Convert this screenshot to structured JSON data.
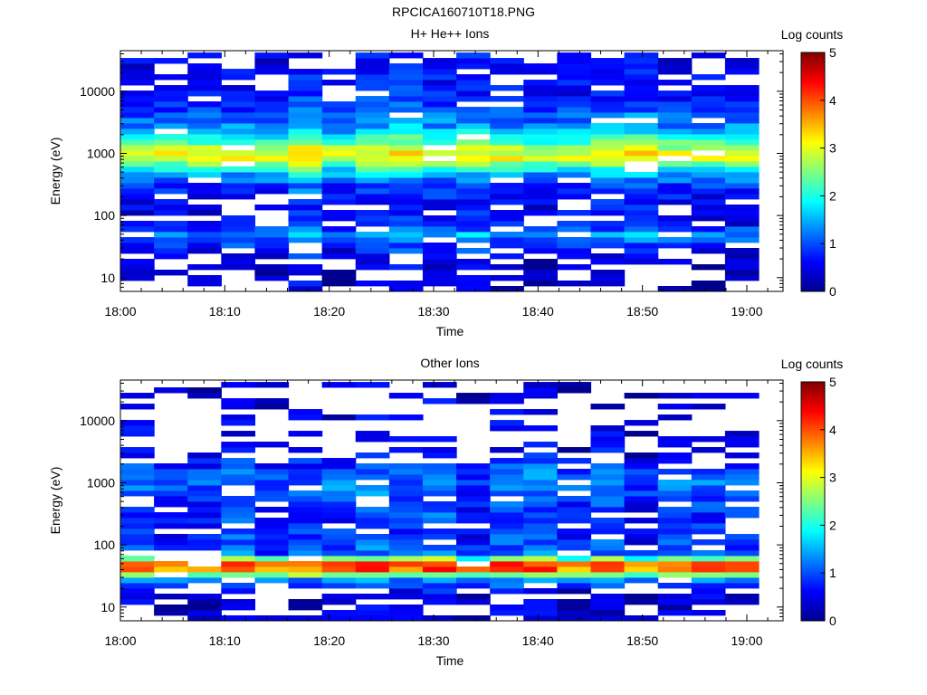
{
  "page_title": "RPCICA160710T18.PNG",
  "chart_data": [
    {
      "type": "heatmap",
      "title": "H+ He++ Ions",
      "xlabel": "Time",
      "ylabel": "Energy (eV)",
      "x_ticks": [
        "18:00",
        "18:10",
        "18:20",
        "18:30",
        "18:40",
        "18:50",
        "19:00"
      ],
      "x_range": [
        "18:00",
        "19:03"
      ],
      "y_scale": "log",
      "y_ticks": [
        10,
        100,
        1000,
        10000
      ],
      "y_tick_labels": [
        "10",
        "100",
        "1000",
        "10000"
      ],
      "y_range": [
        6,
        45000
      ],
      "colorbar": {
        "label": "Log counts",
        "range": [
          0,
          5
        ],
        "ticks": [
          "0",
          "1",
          "2",
          "3",
          "4",
          "5"
        ]
      },
      "time_bins": 19,
      "profile": [
        {
          "energy": 8,
          "value": 0.3
        },
        {
          "energy": 14,
          "value": 0.35
        },
        {
          "energy": 22,
          "value": 0.5
        },
        {
          "energy": 30,
          "value": 0.85
        },
        {
          "energy": 40,
          "value": 1.1
        },
        {
          "energy": 48,
          "value": 1.55
        },
        {
          "energy": 60,
          "value": 1.0
        },
        {
          "energy": 80,
          "value": 0.6
        },
        {
          "energy": 150,
          "value": 0.6
        },
        {
          "energy": 300,
          "value": 0.95
        },
        {
          "energy": 500,
          "value": 1.7
        },
        {
          "energy": 700,
          "value": 2.7
        },
        {
          "energy": 900,
          "value": 3.2
        },
        {
          "energy": 1200,
          "value": 2.9
        },
        {
          "energy": 1600,
          "value": 2.2
        },
        {
          "energy": 2500,
          "value": 1.5
        },
        {
          "energy": 5000,
          "value": 1.0
        },
        {
          "energy": 10000,
          "value": 0.7
        },
        {
          "energy": 40000,
          "value": 0.55
        }
      ],
      "peak_energy_eV": 1000,
      "peak_log_counts": 3.5
    },
    {
      "type": "heatmap",
      "title": "Other Ions",
      "xlabel": "Time",
      "ylabel": "Energy (eV)",
      "x_ticks": [
        "18:00",
        "18:10",
        "18:20",
        "18:30",
        "18:40",
        "18:50",
        "19:00"
      ],
      "x_range": [
        "18:00",
        "19:03"
      ],
      "y_scale": "log",
      "y_ticks": [
        10,
        100,
        1000,
        10000
      ],
      "y_tick_labels": [
        "10",
        "100",
        "1000",
        "10000"
      ],
      "y_range": [
        6,
        45000
      ],
      "colorbar": {
        "label": "Log counts",
        "range": [
          0,
          5
        ],
        "ticks": [
          "0",
          "1",
          "2",
          "3",
          "4",
          "5"
        ]
      },
      "time_bins": 19,
      "profile": [
        {
          "energy": 8,
          "value": 0.3
        },
        {
          "energy": 15,
          "value": 0.35
        },
        {
          "energy": 25,
          "value": 0.9
        },
        {
          "energy": 32,
          "value": 2.2
        },
        {
          "energy": 38,
          "value": 3.6
        },
        {
          "energy": 45,
          "value": 4.2
        },
        {
          "energy": 52,
          "value": 3.7
        },
        {
          "energy": 62,
          "value": 2.2
        },
        {
          "energy": 75,
          "value": 1.0
        },
        {
          "energy": 150,
          "value": 0.75
        },
        {
          "energy": 400,
          "value": 0.8
        },
        {
          "energy": 900,
          "value": 1.2
        },
        {
          "energy": 1500,
          "value": 1.0
        },
        {
          "energy": 3000,
          "value": 0.5
        },
        {
          "energy": 10000,
          "value": 0.35
        },
        {
          "energy": 40000,
          "value": 0.3
        }
      ],
      "peak_energy_eV": 45,
      "peak_log_counts": 4.3
    }
  ]
}
